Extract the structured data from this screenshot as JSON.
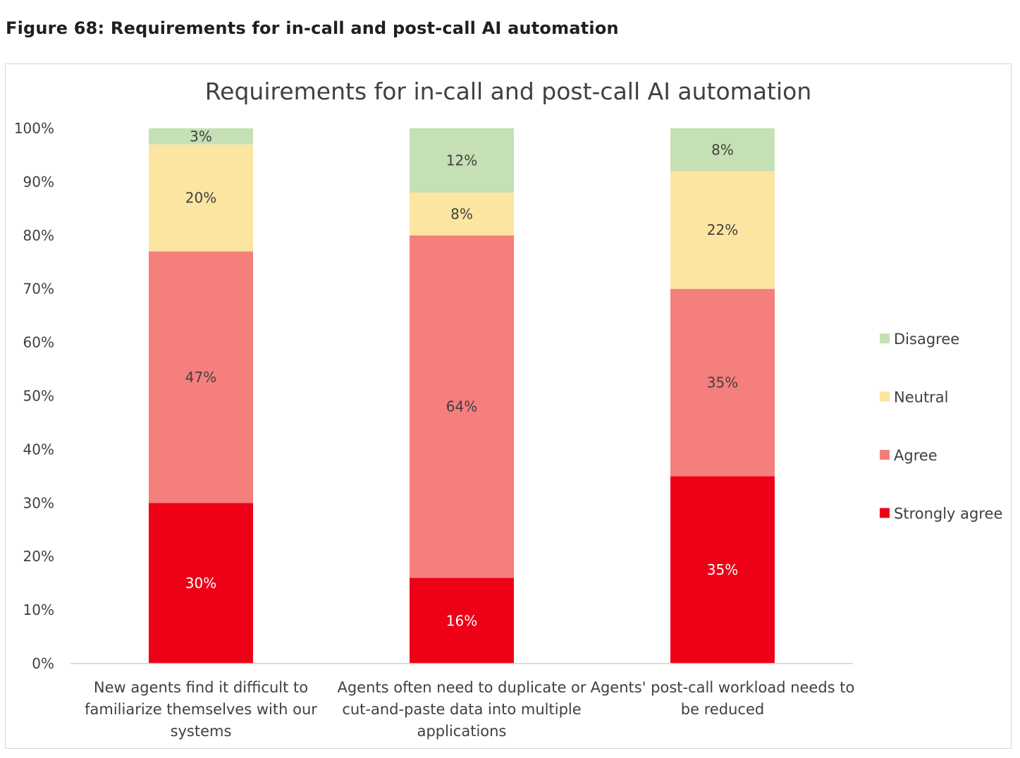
{
  "figure_caption": "Figure 68: Requirements for in-call and post-call AI automation",
  "colors": {
    "Disagree": "#c5e0b4",
    "Neutral": "#fbe5a0",
    "Agree": "#f47f7d",
    "Strongly agree": "#ee0017"
  },
  "chart_data": {
    "type": "bar",
    "stacked": true,
    "title": "Requirements for in-call and post-call AI automation",
    "xlabel": "",
    "ylabel": "",
    "ylim": [
      0,
      100
    ],
    "yticks": [
      "0%",
      "10%",
      "20%",
      "30%",
      "40%",
      "50%",
      "60%",
      "70%",
      "80%",
      "90%",
      "100%"
    ],
    "categories": [
      [
        "New agents find it difficult to",
        "familiarize themselves with our",
        "systems"
      ],
      [
        "Agents often need to duplicate or",
        "cut-and-paste data into multiple",
        "applications"
      ],
      [
        "Agents' post-call workload needs to",
        "be reduced"
      ]
    ],
    "series": [
      {
        "name": "Strongly agree",
        "values": [
          30,
          16,
          35
        ],
        "labels": [
          "30%",
          "16%",
          "35%"
        ]
      },
      {
        "name": "Agree",
        "values": [
          47,
          64,
          35
        ],
        "labels": [
          "47%",
          "64%",
          "35%"
        ]
      },
      {
        "name": "Neutral",
        "values": [
          20,
          8,
          22
        ],
        "labels": [
          "20%",
          "8%",
          "22%"
        ]
      },
      {
        "name": "Disagree",
        "values": [
          3,
          12,
          8
        ],
        "labels": [
          "3%",
          "12%",
          "8%"
        ]
      }
    ],
    "legend": {
      "position": "right",
      "order": [
        "Disagree",
        "Neutral",
        "Agree",
        "Strongly agree"
      ]
    },
    "grid": false
  }
}
